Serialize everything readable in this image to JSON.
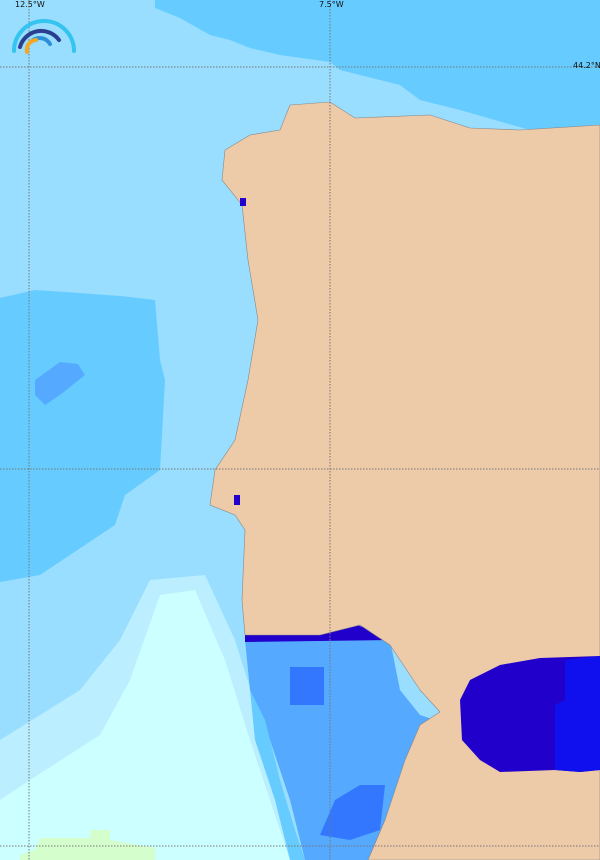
{
  "map": {
    "colors": {
      "land": "#edcaa8",
      "ocean_base": "#99ddff",
      "ocean_mid": "#66ccff",
      "ocean_deep": "#55aaff",
      "ocean_darker": "#3377ff",
      "ocean_darkest": "#2200cc",
      "ocean_med_right": "#1010ee",
      "ocean_light": "#ccffff",
      "ocean_pale": "#bbeeff",
      "green_patch": "#d4ffcc",
      "grid": "#777777"
    },
    "grid_labels": {
      "lon_1": "12.5°W",
      "lon_2": "7.5°W",
      "lat_1": "44.2°N"
    },
    "logo_icon": "rainbow-arcs-logo"
  }
}
